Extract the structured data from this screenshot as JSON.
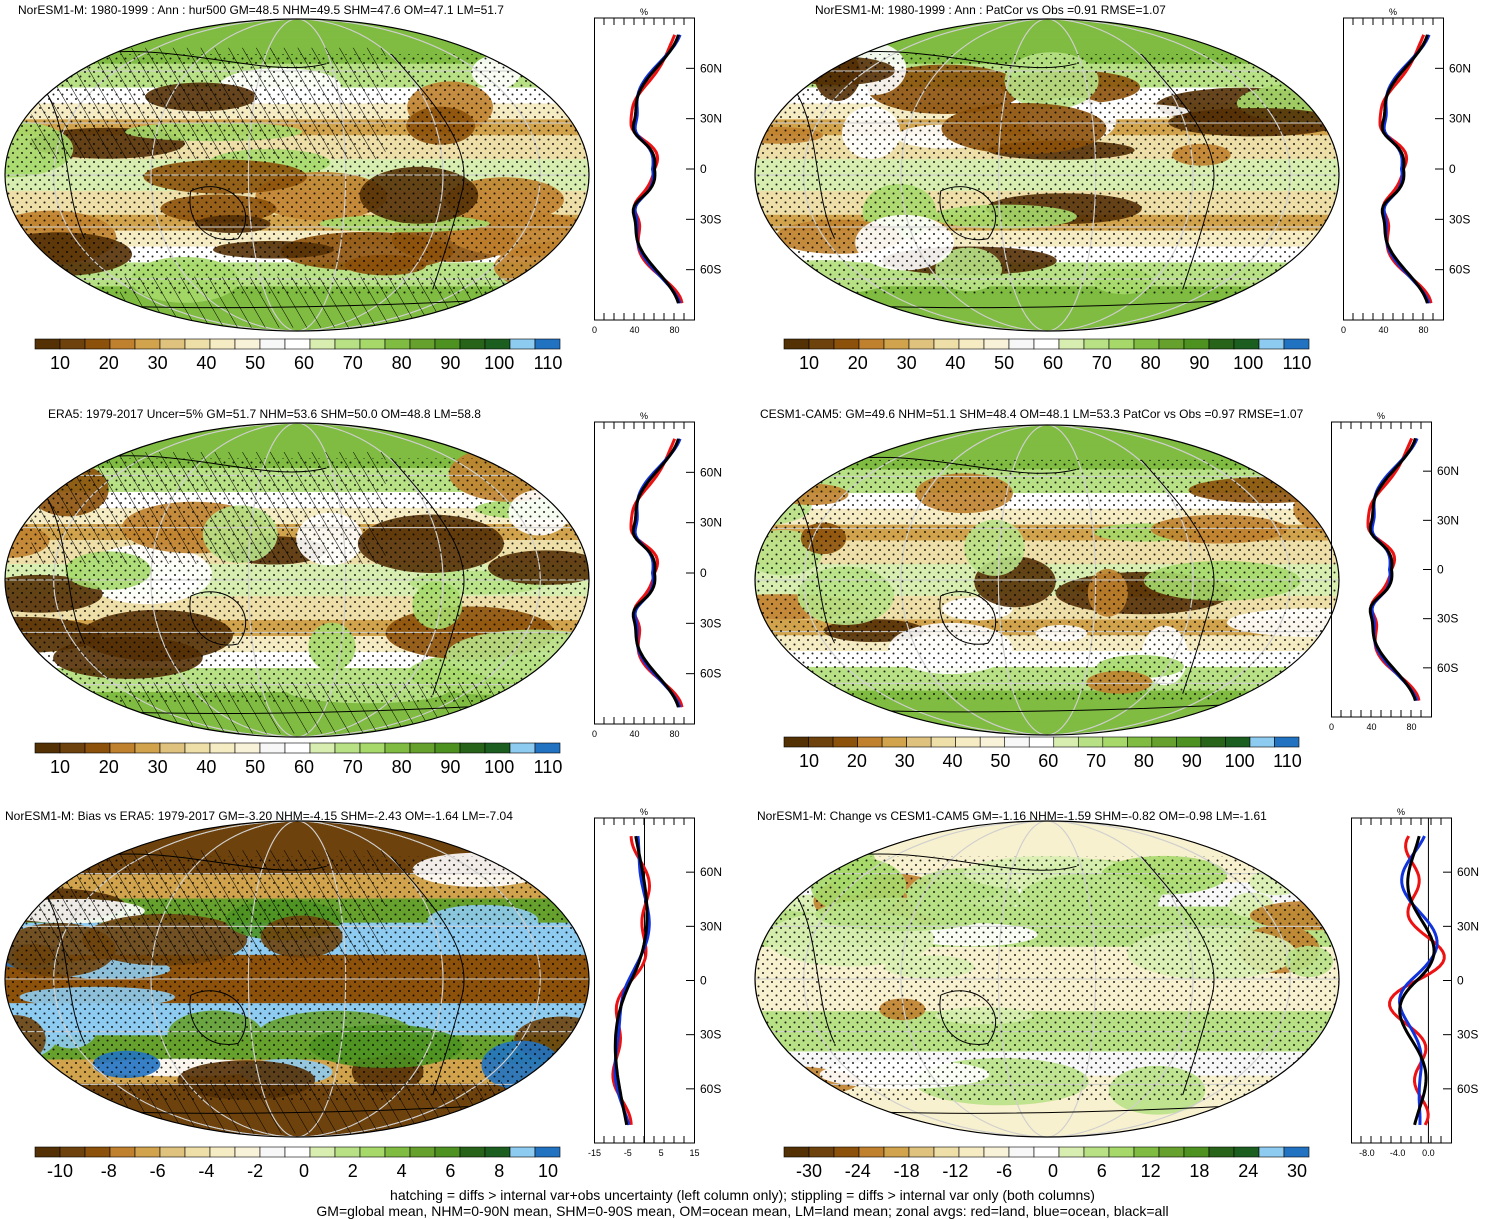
{
  "colors": {
    "abs": [
      "#543005",
      "#6e420c",
      "#8c510a",
      "#bf812d",
      "#d0a34c",
      "#dfc27d",
      "#eedfa8",
      "#f6ecc4",
      "#f8f3d8",
      "#f7f7f7",
      "#ffffff",
      "#d8eeb0",
      "#b8e186",
      "#a6d96a",
      "#7fbc41",
      "#66a12e",
      "#4d9221",
      "#276419",
      "#1b5e20",
      "#8ecbf0",
      "#2173c2"
    ],
    "red": "#ee1111",
    "blue": "#1133dd",
    "black": "#000000",
    "ocean_light": "#f8f1cf"
  },
  "panels": [
    {
      "id": "p1",
      "title": "NorESM1-M: 1980-1999 : Ann : hur500 GM=48.5 NHM=49.5 SHM=47.6 OM=47.1 LM=51.7",
      "type": "abs",
      "hatch": true,
      "colorbar_labels": [
        "10",
        "20",
        "30",
        "40",
        "50",
        "60",
        "70",
        "80",
        "90",
        "100",
        "110"
      ],
      "zonal": {
        "unit": "%",
        "xticks": [
          "0",
          "40",
          "80"
        ],
        "xlim": [
          0,
          100
        ],
        "lat_labels": [
          "60N",
          "30N",
          "0",
          "30S",
          "60S"
        ]
      }
    },
    {
      "id": "p2",
      "title": "NorESM1-M: 1980-1999 : Ann : PatCor vs Obs =0.91 RMSE=1.07",
      "type": "abs",
      "hatch": false,
      "colorbar_labels": [
        "10",
        "20",
        "30",
        "40",
        "50",
        "60",
        "70",
        "80",
        "90",
        "100",
        "110"
      ],
      "zonal": {
        "unit": "%",
        "xticks": [
          "0",
          "40",
          "80"
        ],
        "xlim": [
          0,
          100
        ],
        "lat_labels": [
          "60N",
          "30N",
          "0",
          "30S",
          "60S"
        ]
      }
    },
    {
      "id": "p3",
      "title": "ERA5: 1979-2017 Uncer=5% GM=51.7 NHM=53.6 SHM=50.0 OM=48.8 LM=58.8",
      "type": "abs",
      "hatch": true,
      "colorbar_labels": [
        "10",
        "20",
        "30",
        "40",
        "50",
        "60",
        "70",
        "80",
        "90",
        "100",
        "110"
      ],
      "zonal": {
        "unit": "%",
        "xticks": [
          "0",
          "40",
          "80"
        ],
        "xlim": [
          0,
          100
        ],
        "lat_labels": [
          "60N",
          "30N",
          "0",
          "30S",
          "60S"
        ]
      }
    },
    {
      "id": "p4",
      "title": "CESM1-CAM5: GM=49.6 NHM=51.1 SHM=48.4 OM=48.1 LM=53.3 PatCor vs Obs =0.97 RMSE=1.07",
      "type": "abs",
      "hatch": false,
      "colorbar_labels": [
        "10",
        "20",
        "30",
        "40",
        "50",
        "60",
        "70",
        "80",
        "90",
        "100",
        "110"
      ],
      "zonal": {
        "unit": "%",
        "xticks": [
          "0",
          "40",
          "80"
        ],
        "xlim": [
          0,
          100
        ],
        "lat_labels": [
          "60N",
          "30N",
          "0",
          "30S",
          "60S"
        ]
      }
    },
    {
      "id": "p5",
      "title": "NorESM1-M: Bias vs ERA5: 1979-2017 GM=-3.20 NHM=-4.15 SHM=-2.43 OM=-1.64 LM=-7.04",
      "type": "bias",
      "hatch": true,
      "colorbar_labels": [
        "-10",
        "-8",
        "-6",
        "-4",
        "-2",
        "0",
        "2",
        "4",
        "6",
        "8",
        "10"
      ],
      "zonal": {
        "unit": "%",
        "xticks": [
          "-15",
          "-5",
          "5",
          "15"
        ],
        "xlim": [
          -15,
          15
        ],
        "lat_labels": [
          "60N",
          "30N",
          "0",
          "30S",
          "60S"
        ]
      }
    },
    {
      "id": "p6",
      "title": "NorESM1-M: Change vs CESM1-CAM5 GM=-1.16 NHM=-1.59 SHM=-0.82 OM=-0.98 LM=-1.61",
      "type": "change",
      "hatch": false,
      "colorbar_labels": [
        "-30",
        "-24",
        "-18",
        "-12",
        "-6",
        "0",
        "6",
        "12",
        "18",
        "24",
        "30"
      ],
      "zonal": {
        "unit": "%",
        "xticks": [
          "-8.0",
          "-4.0",
          "0.0"
        ],
        "xlim": [
          -10,
          3
        ],
        "lat_labels": [
          "60N",
          "30N",
          "0",
          "30S",
          "60S"
        ]
      }
    }
  ],
  "footer": {
    "line1": "hatching = diffs > internal var+obs uncertainty (left column only); stippling = diffs > internal var only (both columns)",
    "line2": "GM=global mean, NHM=0-90N mean, SHM=0-90S mean, OM=ocean mean, LM=land mean; zonal avgs: red=land, blue=ocean, black=all"
  }
}
